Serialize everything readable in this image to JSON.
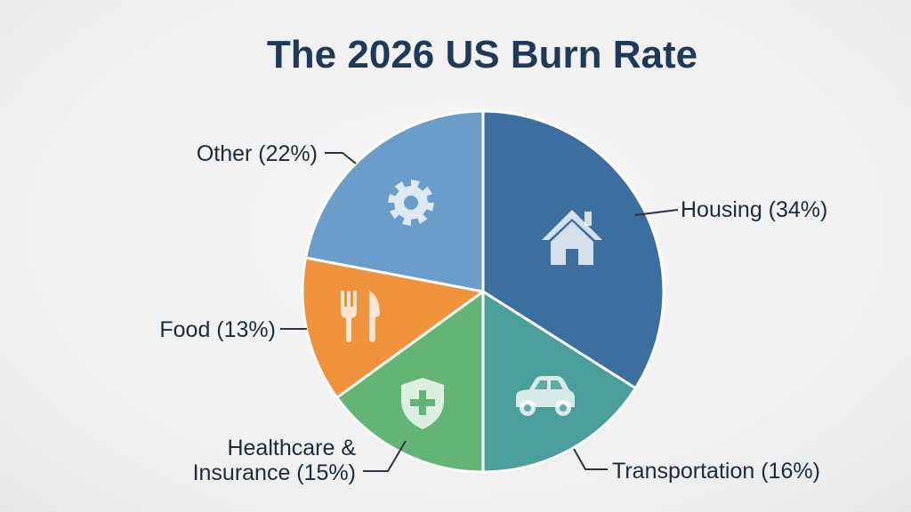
{
  "chart_data": {
    "type": "pie",
    "title": "The 2026 US Burn Rate",
    "slices": [
      {
        "name": "Housing",
        "label": "Housing (34%)",
        "value": 34,
        "color": "#3c6e9f",
        "icon": "house-icon"
      },
      {
        "name": "Transportation",
        "label": "Transportation (16%)",
        "value": 16,
        "color": "#4a9f9a",
        "icon": "car-icon"
      },
      {
        "name": "Healthcare & Insurance",
        "label_lines": [
          "Healthcare &",
          "Insurance (15%)"
        ],
        "value": 15,
        "color": "#64b476",
        "icon": "shield-plus-icon"
      },
      {
        "name": "Food",
        "label": "Food (13%)",
        "value": 13,
        "color": "#f0913c",
        "icon": "fork-knife-icon"
      },
      {
        "name": "Other",
        "label": "Other (22%)",
        "value": 22,
        "color": "#6a9dc9",
        "icon": "gear-icon"
      }
    ],
    "start": "12 o'clock",
    "direction": "clockwise",
    "legend": "none"
  }
}
